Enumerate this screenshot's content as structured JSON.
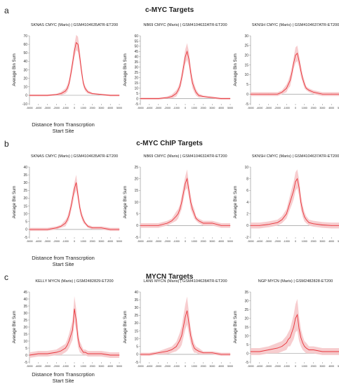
{
  "sections": [
    {
      "letter": "a",
      "title": "c-MYC Targets",
      "shared_xlabel": "Distance from Transcrption Start Site"
    },
    {
      "letter": "b",
      "title": "c-MYC ChIP Targets",
      "shared_xlabel": "Distance from Transcrption Start Site"
    },
    {
      "letter": "c",
      "title": "MYCN Targets",
      "shared_xlabel": "Distance from Transcrption Start Site"
    }
  ],
  "colors": {
    "line": "#e8343a",
    "band": "#f6c4c7",
    "axis": "#888888"
  },
  "chart_data": [
    {
      "type": "line",
      "title": "SKNAS CMYC (Maris) | GSM4104635ATR-ET200",
      "ylabel": "Average Bin Sum",
      "xlim": [
        -5000,
        5000
      ],
      "xticks": [
        -5000,
        -4000,
        -3000,
        -2000,
        -1000,
        0,
        1000,
        2000,
        3000,
        4000,
        5000
      ],
      "ylim": [
        -10,
        70
      ],
      "yticks": [
        -10,
        0,
        10,
        20,
        30,
        40,
        50,
        60,
        70
      ],
      "series": [
        {
          "x": [
            -5000,
            -4000,
            -3000,
            -2000,
            -1500,
            -1000,
            -800,
            -600,
            -400,
            -200,
            0,
            200,
            400,
            600,
            800,
            1000,
            1200,
            1500,
            2000,
            3000,
            4000,
            5000
          ],
          "values": [
            0,
            0,
            0,
            1,
            2,
            5,
            8,
            14,
            25,
            38,
            52,
            62,
            60,
            45,
            28,
            14,
            8,
            4,
            2,
            1,
            0,
            0
          ],
          "band": [
            1,
            1,
            1,
            1,
            2,
            3,
            4,
            5,
            6,
            7,
            8,
            9,
            9,
            8,
            6,
            4,
            3,
            2,
            1,
            1,
            1,
            1
          ]
        }
      ]
    },
    {
      "type": "line",
      "title": "NB69 CMYC (Maris) | GSM4104632ATR-ET200",
      "ylabel": "Average Bin Sum",
      "xlim": [
        -5000,
        5000
      ],
      "xticks": [
        -5000,
        -4000,
        -3000,
        -2000,
        -1000,
        0,
        1000,
        2000,
        3000,
        4000,
        5000
      ],
      "ylim": [
        -5,
        60
      ],
      "yticks": [
        -5,
        0,
        5,
        10,
        15,
        20,
        25,
        30,
        35,
        40,
        45,
        50,
        55,
        60
      ],
      "series": [
        {
          "x": [
            -5000,
            -4000,
            -3000,
            -2000,
            -1500,
            -1000,
            -800,
            -600,
            -400,
            -200,
            0,
            200,
            400,
            600,
            800,
            1000,
            1200,
            1500,
            2000,
            3000,
            4000,
            5000
          ],
          "values": [
            0,
            0,
            0,
            1,
            2,
            5,
            8,
            12,
            20,
            30,
            40,
            45,
            38,
            25,
            15,
            10,
            6,
            3,
            2,
            1,
            0,
            0
          ],
          "band": [
            1,
            1,
            1,
            1,
            2,
            3,
            3,
            4,
            5,
            6,
            7,
            8,
            7,
            6,
            5,
            4,
            3,
            2,
            1,
            1,
            1,
            1
          ]
        }
      ]
    },
    {
      "type": "line",
      "title": "SKNSH CMYC (Maris) | GSM4104637ATR-ET200",
      "ylabel": "Average Bin Sum",
      "xlim": [
        -5000,
        5000
      ],
      "xticks": [
        -5000,
        -4000,
        -3000,
        -2000,
        -1000,
        0,
        1000,
        2000,
        3000,
        4000,
        5000
      ],
      "ylim": [
        -5,
        30
      ],
      "yticks": [
        -5,
        0,
        5,
        10,
        15,
        20,
        25,
        30
      ],
      "series": [
        {
          "x": [
            -5000,
            -4000,
            -3000,
            -2000,
            -1500,
            -1000,
            -800,
            -600,
            -400,
            -200,
            0,
            200,
            400,
            600,
            800,
            1000,
            1200,
            1500,
            2000,
            3000,
            4000,
            5000
          ],
          "values": [
            0,
            0,
            0,
            0,
            1,
            3,
            5,
            7,
            11,
            16,
            20,
            21,
            17,
            12,
            8,
            5,
            3,
            2,
            1,
            0,
            0,
            0
          ],
          "band": [
            1,
            1,
            1,
            1,
            1,
            2,
            2,
            3,
            3,
            3,
            4,
            4,
            3,
            3,
            2,
            2,
            1,
            1,
            1,
            1,
            1,
            1
          ]
        }
      ]
    },
    {
      "type": "line",
      "title": "SKNAS CMYC (Maris) | GSM4104635ATR-ET200",
      "ylabel": "Average Bin Sum",
      "xlim": [
        -5000,
        5000
      ],
      "xticks": [
        -5000,
        -4000,
        -3000,
        -2000,
        -1000,
        0,
        1000,
        2000,
        3000,
        4000,
        5000
      ],
      "ylim": [
        -5,
        40
      ],
      "yticks": [
        -5,
        0,
        5,
        10,
        15,
        20,
        25,
        30,
        35,
        40
      ],
      "series": [
        {
          "x": [
            -5000,
            -4000,
            -3000,
            -2000,
            -1500,
            -1000,
            -800,
            -600,
            -400,
            -200,
            0,
            200,
            400,
            600,
            800,
            1000,
            1200,
            1500,
            2000,
            3000,
            4000,
            5000
          ],
          "values": [
            0,
            0,
            0,
            1,
            2,
            4,
            6,
            9,
            14,
            20,
            26,
            30,
            22,
            14,
            9,
            6,
            4,
            2,
            1,
            1,
            0,
            0
          ],
          "band": [
            1,
            1,
            1,
            1,
            1,
            2,
            2,
            3,
            3,
            4,
            4,
            5,
            4,
            3,
            2,
            2,
            1,
            1,
            1,
            1,
            1,
            1
          ]
        }
      ]
    },
    {
      "type": "line",
      "title": "NB69 CMYC (Maris) | GSM4104632ATR-ET200",
      "ylabel": "Average Bin Sum",
      "xlim": [
        -5000,
        5000
      ],
      "xticks": [
        -5000,
        -4000,
        -3000,
        -2000,
        -1000,
        0,
        1000,
        2000,
        3000,
        4000,
        5000
      ],
      "ylim": [
        -5,
        25
      ],
      "yticks": [
        -5,
        0,
        5,
        10,
        15,
        20,
        25
      ],
      "series": [
        {
          "x": [
            -5000,
            -4000,
            -3000,
            -2000,
            -1500,
            -1000,
            -800,
            -600,
            -400,
            -200,
            0,
            200,
            400,
            600,
            800,
            1000,
            1200,
            1500,
            2000,
            3000,
            4000,
            5000
          ],
          "values": [
            0,
            0,
            0,
            1,
            2,
            4,
            5,
            7,
            10,
            14,
            18,
            20,
            15,
            10,
            7,
            5,
            3,
            2,
            1,
            1,
            0,
            0
          ],
          "band": [
            1,
            1,
            1,
            1,
            1,
            2,
            2,
            2,
            3,
            3,
            3,
            4,
            3,
            3,
            2,
            2,
            1,
            1,
            1,
            1,
            1,
            1
          ]
        }
      ]
    },
    {
      "type": "line",
      "title": "SKNSH CMYC (Maris) | GSM4104637ATR-ET200",
      "ylabel": "Average Bin Sum",
      "xlim": [
        -5000,
        5000
      ],
      "xticks": [
        -5000,
        -4000,
        -3000,
        -2000,
        -1000,
        0,
        1000,
        2000,
        3000,
        4000,
        5000
      ],
      "ylim": [
        -2,
        10
      ],
      "yticks": [
        -2,
        0,
        2,
        4,
        6,
        8,
        10
      ],
      "series": [
        {
          "x": [
            -5000,
            -4000,
            -3000,
            -2000,
            -1500,
            -1000,
            -800,
            -600,
            -400,
            -200,
            0,
            200,
            400,
            600,
            800,
            1000,
            1200,
            1500,
            2000,
            3000,
            4000,
            5000
          ],
          "values": [
            0,
            0,
            0.2,
            0.5,
            1,
            2,
            3,
            4,
            5,
            6,
            7.5,
            8,
            6.5,
            4,
            2.5,
            1.5,
            1,
            0.5,
            0.3,
            0.1,
            0,
            0
          ],
          "band": [
            0.5,
            0.5,
            0.5,
            0.5,
            0.6,
            0.8,
            1,
            1.2,
            1.4,
            1.5,
            1.6,
            1.6,
            1.4,
            1.2,
            1,
            0.8,
            0.6,
            0.5,
            0.5,
            0.5,
            0.5,
            0.5
          ]
        }
      ]
    },
    {
      "type": "line",
      "title": "KELLY MYCN (Maris) | GSM2482829-ET200",
      "ylabel": "Average Bin Sum",
      "xlim": [
        -5000,
        5000
      ],
      "xticks": [
        -5000,
        -4000,
        -3000,
        -2000,
        -1000,
        0,
        1000,
        2000,
        3000,
        4000,
        5000
      ],
      "ylim": [
        -5,
        45
      ],
      "yticks": [
        -5,
        0,
        5,
        10,
        15,
        20,
        25,
        30,
        35,
        40,
        45
      ],
      "series": [
        {
          "x": [
            -5000,
            -4000,
            -3000,
            -2000,
            -1500,
            -1000,
            -800,
            -600,
            -400,
            -200,
            0,
            200,
            400,
            600,
            800,
            1000,
            1200,
            1500,
            2000,
            3000,
            4000,
            5000
          ],
          "values": [
            0,
            1,
            1,
            2,
            3,
            5,
            7,
            10,
            14,
            18,
            33,
            25,
            12,
            6,
            4,
            2,
            2,
            1,
            1,
            1,
            0,
            0
          ],
          "band": [
            2,
            2,
            2,
            2,
            3,
            3,
            4,
            5,
            6,
            7,
            9,
            8,
            6,
            4,
            3,
            2,
            2,
            2,
            2,
            2,
            2,
            2
          ]
        }
      ]
    },
    {
      "type": "line",
      "title": "LAN5 MYCN (Maris) | GSM4104628ATR-ET200",
      "ylabel": "Average Bin Sum",
      "xlim": [
        -5000,
        5000
      ],
      "xticks": [
        -5000,
        -4000,
        -3000,
        -2000,
        -1000,
        0,
        1000,
        2000,
        3000,
        4000,
        5000
      ],
      "ylim": [
        -5,
        40
      ],
      "yticks": [
        -5,
        0,
        5,
        10,
        15,
        20,
        25,
        30,
        35,
        40
      ],
      "series": [
        {
          "x": [
            -5000,
            -4000,
            -3000,
            -2000,
            -1500,
            -1000,
            -800,
            -600,
            -400,
            -200,
            0,
            200,
            400,
            600,
            800,
            1000,
            1200,
            1500,
            2000,
            3000,
            4000,
            5000
          ],
          "values": [
            0,
            0,
            1,
            2,
            3,
            5,
            7,
            9,
            12,
            18,
            24,
            28,
            20,
            12,
            7,
            4,
            3,
            2,
            1,
            1,
            0,
            0
          ],
          "band": [
            1,
            1,
            1,
            2,
            2,
            3,
            4,
            5,
            6,
            7,
            8,
            9,
            7,
            5,
            4,
            3,
            2,
            2,
            1,
            1,
            1,
            1
          ]
        }
      ]
    },
    {
      "type": "line",
      "title": "NGP MYCN (Maris) | GSM2482828-ET200",
      "ylabel": "Average Bin Sum",
      "xlim": [
        -5000,
        5000
      ],
      "xticks": [
        -5000,
        -4000,
        -3000,
        -2000,
        -1000,
        0,
        1000,
        2000,
        3000,
        4000,
        5000
      ],
      "ylim": [
        -5,
        35
      ],
      "yticks": [
        -5,
        0,
        5,
        10,
        15,
        20,
        25,
        30,
        35
      ],
      "series": [
        {
          "x": [
            -5000,
            -4000,
            -3000,
            -2000,
            -1500,
            -1000,
            -800,
            -600,
            -400,
            -200,
            0,
            200,
            400,
            600,
            800,
            1000,
            1200,
            1500,
            2000,
            3000,
            4000,
            5000
          ],
          "values": [
            1,
            1,
            2,
            3,
            4,
            6,
            8,
            9,
            12,
            15,
            20,
            22,
            14,
            9,
            6,
            4,
            3,
            2,
            2,
            1,
            1,
            1
          ],
          "band": [
            2,
            2,
            2,
            3,
            3,
            4,
            4,
            5,
            6,
            7,
            8,
            9,
            7,
            5,
            4,
            3,
            3,
            2,
            2,
            2,
            2,
            2
          ]
        }
      ]
    }
  ]
}
